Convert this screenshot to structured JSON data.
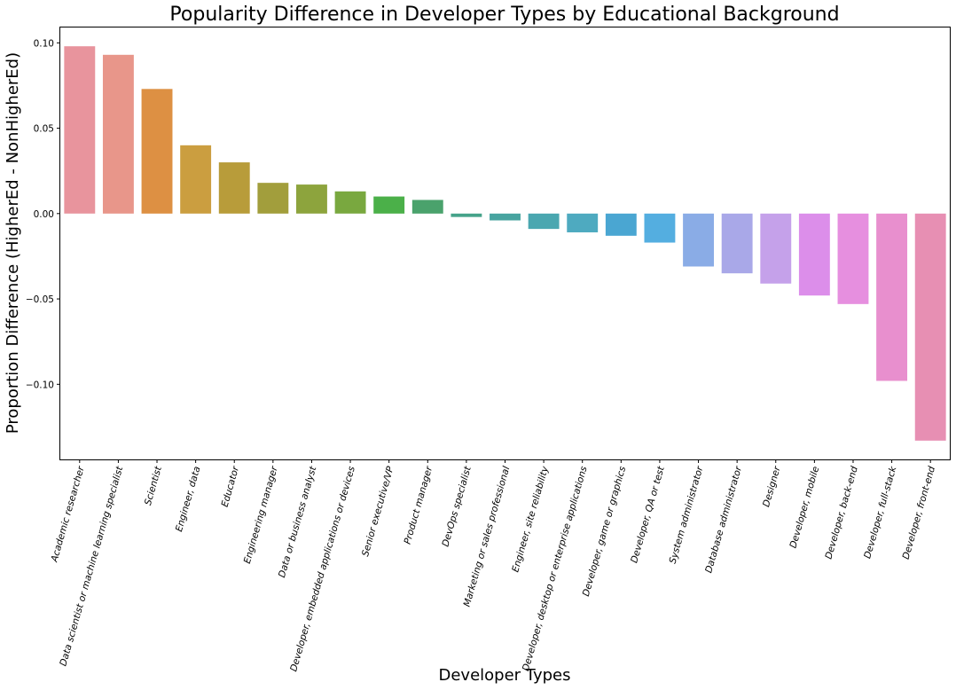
{
  "chart_data": {
    "type": "bar",
    "title": "Popularity Difference in Developer Types by Educational Background",
    "xlabel": "Developer Types",
    "ylabel": "Proportion Difference (HigherEd - NonHigherEd)",
    "ylim": [
      -0.144,
      0.109
    ],
    "yticks": [
      {
        "value": 0.1,
        "label": "0.10"
      },
      {
        "value": 0.05,
        "label": "0.05"
      },
      {
        "value": 0.0,
        "label": "0.00"
      },
      {
        "value": -0.05,
        "label": "−0.05"
      },
      {
        "value": -0.1,
        "label": "−0.10"
      }
    ],
    "grid": false,
    "categories": [
      "Academic researcher",
      "Data scientist or machine learning specialist",
      "Scientist",
      "Engineer, data",
      "Educator",
      "Engineering manager",
      "Data or business analyst",
      "Developer, embedded applications or devices",
      "Senior executive/VP",
      "Product manager",
      "DevOps specialist",
      "Marketing or sales professional",
      "Engineer, site reliability",
      "Developer, desktop or enterprise applications",
      "Developer, game or graphics",
      "Developer, QA or test",
      "System administrator",
      "Database administrator",
      "Designer",
      "Developer, mobile",
      "Developer, back-end",
      "Developer, full-stack",
      "Developer, front-end"
    ],
    "values": [
      0.098,
      0.093,
      0.073,
      0.04,
      0.03,
      0.018,
      0.017,
      0.013,
      0.01,
      0.008,
      -0.002,
      -0.004,
      -0.009,
      -0.011,
      -0.013,
      -0.017,
      -0.031,
      -0.035,
      -0.041,
      -0.048,
      -0.053,
      -0.098,
      -0.133
    ],
    "colors": [
      "#e8949d",
      "#e8968a",
      "#dd9043",
      "#cb9e40",
      "#b89c3a",
      "#a29e3c",
      "#8da43d",
      "#79a83f",
      "#4bb049",
      "#4aa26c",
      "#46a38a",
      "#48a4a0",
      "#4aa7b0",
      "#4eaac0",
      "#4aa6d2",
      "#54aee0",
      "#8aace6",
      "#a9a8e8",
      "#c5a1ea",
      "#dc8eea",
      "#e68fdf",
      "#e88fce",
      "#e78fb3"
    ]
  }
}
